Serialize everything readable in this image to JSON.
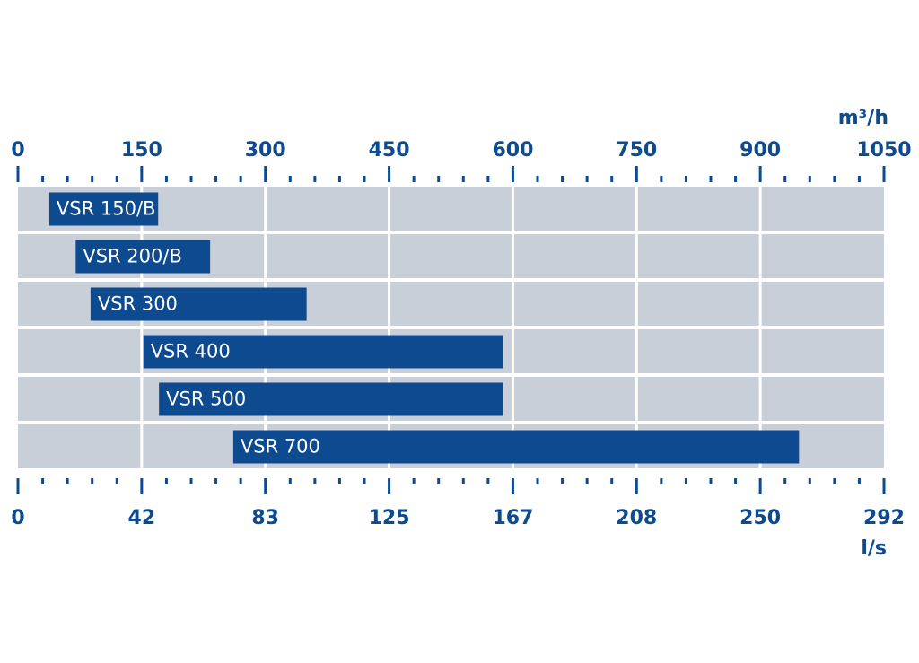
{
  "chart_data": {
    "type": "range-bar",
    "x_label": "m³/h",
    "x2_label": "l/s",
    "categories": [
      "VSR 150/B",
      "VSR 200/B",
      "VSR 300",
      "VSR 400",
      "VSR 500",
      "VSR 700"
    ],
    "start": [
      38,
      70,
      88,
      152,
      171,
      261
    ],
    "end": [
      170,
      233,
      350,
      588,
      588,
      947
    ],
    "color": "#0d4a8f",
    "background": "#c8cfd9",
    "xlim": [
      0,
      1050
    ],
    "xticks": [
      0,
      150,
      300,
      450,
      600,
      750,
      900,
      1050
    ],
    "minor_xticks": [
      30,
      60,
      90,
      120,
      180,
      210,
      240,
      270,
      330,
      360,
      390,
      420,
      480,
      510,
      540,
      570,
      630,
      660,
      690,
      720,
      780,
      810,
      840,
      870,
      930,
      960,
      990,
      1020
    ],
    "x2lim": [
      0,
      291.67
    ],
    "x2ticks": [
      0,
      {
        "value": 41.67,
        "label": "42"
      },
      {
        "value": 83.33,
        "label": "83"
      },
      125,
      {
        "value": 166.67,
        "label": "167"
      },
      {
        "value": 208.33,
        "label": "208"
      },
      250,
      {
        "value": 291.67,
        "label": "292"
      }
    ],
    "grid": true
  }
}
